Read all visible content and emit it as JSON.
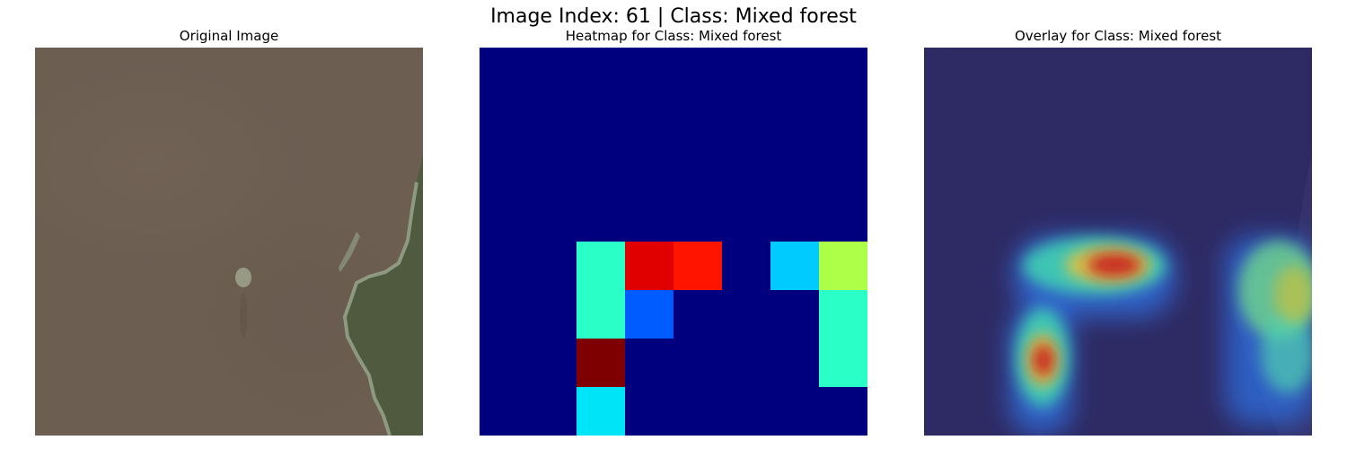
{
  "figure": {
    "suptitle": "Image Index: 61 | Class: Mixed forest",
    "panels": {
      "original": {
        "title": "Original Image"
      },
      "heatmap": {
        "title": "Heatmap for Class: Mixed forest"
      },
      "overlay": {
        "title": "Overlay for Class: Mixed forest"
      }
    }
  },
  "heatmap_grid": {
    "rows": 8,
    "cols": 8,
    "background": "#00007f",
    "cells": [
      {
        "row": 4,
        "col": 2,
        "color": "#2affc8"
      },
      {
        "row": 4,
        "col": 3,
        "color": "#e00000"
      },
      {
        "row": 4,
        "col": 4,
        "color": "#ff1400"
      },
      {
        "row": 4,
        "col": 6,
        "color": "#00cbff"
      },
      {
        "row": 4,
        "col": 7,
        "color": "#aeff48"
      },
      {
        "row": 5,
        "col": 2,
        "color": "#2affc8"
      },
      {
        "row": 5,
        "col": 3,
        "color": "#005cff"
      },
      {
        "row": 5,
        "col": 7,
        "color": "#2affc8"
      },
      {
        "row": 6,
        "col": 2,
        "color": "#7f0000"
      },
      {
        "row": 6,
        "col": 7,
        "color": "#2affc8"
      },
      {
        "row": 7,
        "col": 2,
        "color": "#00e4f8"
      }
    ]
  },
  "colors": {
    "original_base": "#6c5e51",
    "land": "#4e5a3e",
    "coast": "#9aa98e",
    "overlay_base": "#2e2a63"
  }
}
